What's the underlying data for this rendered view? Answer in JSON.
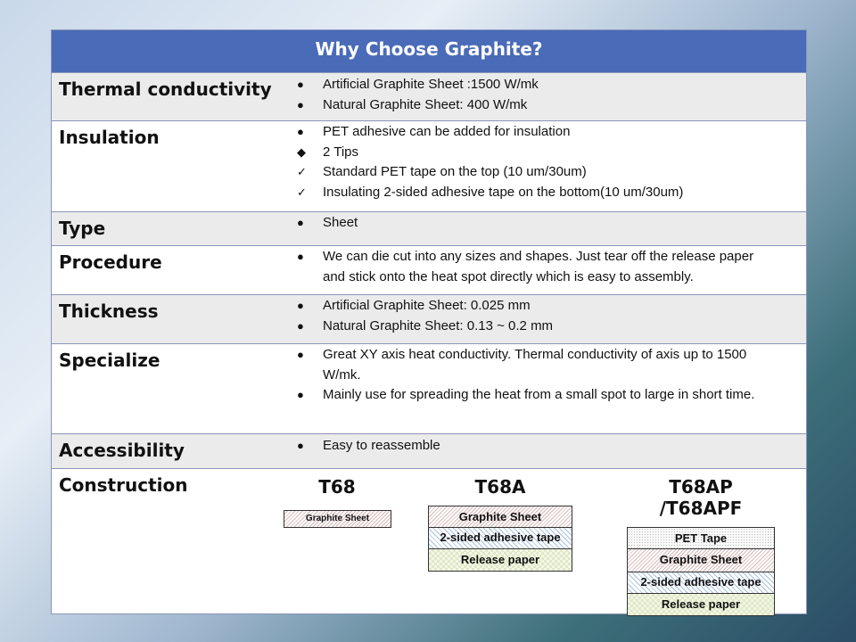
{
  "title": "Why Choose Graphite?",
  "rows": [
    {
      "label": "Thermal conductivity",
      "items": [
        {
          "bullet": "●",
          "text": "Artificial Graphite Sheet :1500 W/mk"
        },
        {
          "bullet": "●",
          "text": "Natural Graphite Sheet: 400 W/mk"
        }
      ]
    },
    {
      "label": "Insulation",
      "items": [
        {
          "bullet": "●",
          "text": "PET adhesive can be added for insulation"
        },
        {
          "bullet": "◆",
          "text": " 2 Tips"
        },
        {
          "bullet": "✓",
          "text": " Standard PET tape on the top (10 um/30um)"
        },
        {
          "bullet": "✓",
          "text": " Insulating 2-sided adhesive tape on the bottom(10 um/30um)"
        }
      ]
    },
    {
      "label": "Type",
      "items": [
        {
          "bullet": "●",
          "text": "Sheet"
        }
      ]
    },
    {
      "label": "Procedure",
      "items": [
        {
          "bullet": "●",
          "text": "We can die cut  into any sizes and shapes. Just tear off the release paper and stick onto the heat spot directly which is easy to assembly."
        }
      ]
    },
    {
      "label": "Thickness",
      "items": [
        {
          "bullet": "●",
          "text": "Artificial Graphite Sheet: 0.025 mm"
        },
        {
          "bullet": "●",
          "text": "Natural Graphite Sheet: 0.13 ~ 0.2 mm"
        }
      ]
    },
    {
      "label": "Specialize",
      "items": [
        {
          "bullet": "●",
          "text": "Great XY axis heat conductivity. Thermal conductivity of axis up to 1500 W/mk."
        },
        {
          "bullet": "●",
          "text": "Mainly use  for spreading the heat from a small spot to large in short time."
        }
      ]
    },
    {
      "label": "Accessibility",
      "items": [
        {
          "bullet": "●",
          "text": "Easy to reassemble"
        }
      ]
    }
  ],
  "construction": {
    "label": "Construction",
    "models": [
      {
        "name": "T68",
        "layers": [
          "Graphite Sheet"
        ]
      },
      {
        "name": "T68A",
        "layers": [
          "Graphite Sheet",
          "2-sided adhesive tape",
          "Release paper"
        ]
      },
      {
        "name": "T68AP  /T68APF",
        "layers": [
          "PET Tape",
          "Graphite Sheet",
          "2-sided adhesive tape",
          "Release paper"
        ]
      }
    ]
  }
}
